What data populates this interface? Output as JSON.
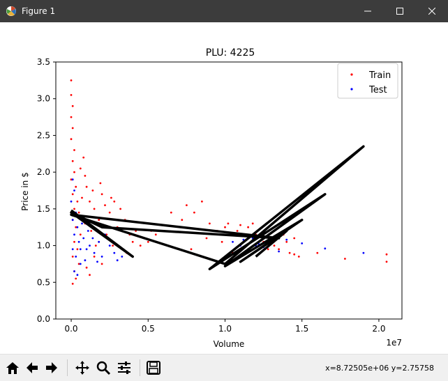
{
  "window": {
    "title": "Figure 1"
  },
  "status": {
    "coords": "x=8.72505e+06  y=2.75758"
  },
  "toolbar": {
    "buttons": [
      "home-icon",
      "back-arrow-icon",
      "forward-arrow-icon",
      "pan-icon",
      "zoom-icon",
      "subplots-icon",
      "save-icon"
    ]
  },
  "colors": {
    "train": "#ff0000",
    "test": "#0000ff",
    "fit": "#000000",
    "titlebar": "#3c3c3c"
  },
  "chart_data": {
    "type": "scatter",
    "title": "PLU: 4225",
    "xlabel": "Volume",
    "ylabel": "Price in $",
    "x_offset_label": "1e7",
    "xlim": [
      -0.1,
      2.15
    ],
    "ylim": [
      0.0,
      3.5
    ],
    "x_ticks": [
      0.0,
      0.5,
      1.0,
      1.5,
      2.0
    ],
    "x_tick_labels": [
      "0.0",
      "0.5",
      "1.0",
      "1.5",
      "2.0"
    ],
    "y_ticks": [
      0.0,
      0.5,
      1.0,
      1.5,
      2.0,
      2.5,
      3.0,
      3.5
    ],
    "y_tick_labels": [
      "0.0",
      "0.5",
      "1.0",
      "1.5",
      "2.0",
      "2.5",
      "3.0",
      "3.5"
    ],
    "legend": {
      "placement": "top-right",
      "entries": [
        "Train",
        "Test"
      ]
    },
    "series": [
      {
        "name": "Train",
        "color": "#ff0000",
        "points": [
          [
            0.0,
            3.25
          ],
          [
            0.0,
            3.05
          ],
          [
            0.01,
            2.9
          ],
          [
            0.0,
            2.75
          ],
          [
            0.01,
            2.6
          ],
          [
            0.0,
            2.45
          ],
          [
            0.02,
            2.3
          ],
          [
            0.01,
            2.15
          ],
          [
            0.02,
            2.0
          ],
          [
            0.0,
            1.9
          ],
          [
            0.03,
            1.8
          ],
          [
            0.01,
            1.7
          ],
          [
            0.04,
            1.6
          ],
          [
            0.02,
            1.5
          ],
          [
            0.05,
            1.45
          ],
          [
            0.01,
            1.35
          ],
          [
            0.03,
            1.25
          ],
          [
            0.06,
            1.15
          ],
          [
            0.02,
            1.05
          ],
          [
            0.04,
            0.95
          ],
          [
            0.01,
            0.85
          ],
          [
            0.05,
            0.75
          ],
          [
            0.02,
            0.65
          ],
          [
            0.03,
            0.55
          ],
          [
            0.01,
            0.48
          ],
          [
            0.08,
            2.2
          ],
          [
            0.09,
            1.95
          ],
          [
            0.1,
            1.8
          ],
          [
            0.12,
            1.6
          ],
          [
            0.15,
            1.5
          ],
          [
            0.13,
            1.2
          ],
          [
            0.18,
            1.35
          ],
          [
            0.2,
            1.7
          ],
          [
            0.22,
            1.55
          ],
          [
            0.25,
            1.45
          ],
          [
            0.28,
            1.6
          ],
          [
            0.3,
            1.25
          ],
          [
            0.32,
            1.5
          ],
          [
            0.35,
            1.35
          ],
          [
            0.38,
            1.15
          ],
          [
            0.4,
            1.05
          ],
          [
            0.42,
            1.2
          ],
          [
            0.45,
            1.0
          ],
          [
            0.18,
            1.05
          ],
          [
            0.23,
            1.15
          ],
          [
            0.27,
            1.0
          ],
          [
            0.33,
            0.95
          ],
          [
            0.36,
            0.9
          ],
          [
            0.15,
            0.85
          ],
          [
            0.2,
            0.75
          ],
          [
            0.1,
            0.7
          ],
          [
            0.12,
            0.6
          ],
          [
            0.14,
            1.75
          ],
          [
            0.19,
            1.85
          ],
          [
            0.26,
            1.65
          ],
          [
            0.07,
            1.65
          ],
          [
            0.06,
            2.05
          ],
          [
            0.09,
            1.3
          ],
          [
            0.16,
            1.0
          ],
          [
            0.52,
            1.2
          ],
          [
            0.55,
            1.15
          ],
          [
            0.5,
            1.05
          ],
          [
            0.75,
            1.55
          ],
          [
            0.72,
            1.35
          ],
          [
            0.8,
            1.45
          ],
          [
            0.85,
            1.6
          ],
          [
            0.9,
            1.3
          ],
          [
            0.65,
            1.45
          ],
          [
            0.78,
            0.95
          ],
          [
            0.88,
            1.1
          ],
          [
            0.95,
            1.2
          ],
          [
            1.0,
            1.25
          ],
          [
            1.02,
            1.3
          ],
          [
            1.05,
            1.15
          ],
          [
            1.08,
            1.2
          ],
          [
            1.1,
            1.28
          ],
          [
            1.12,
            1.05
          ],
          [
            1.15,
            1.25
          ],
          [
            1.18,
            1.3
          ],
          [
            1.2,
            1.15
          ],
          [
            1.22,
            1.0
          ],
          [
            1.25,
            1.05
          ],
          [
            1.28,
            0.95
          ],
          [
            1.3,
            1.1
          ],
          [
            1.32,
            1.0
          ],
          [
            1.35,
            0.95
          ],
          [
            1.38,
            1.15
          ],
          [
            1.4,
            1.05
          ],
          [
            1.42,
            0.9
          ],
          [
            1.45,
            1.1
          ],
          [
            1.48,
            0.85
          ],
          [
            1.6,
            0.9
          ],
          [
            1.78,
            0.82
          ],
          [
            2.05,
            0.88
          ],
          [
            2.05,
            0.78
          ],
          [
            1.1,
            0.95
          ],
          [
            0.98,
            1.05
          ],
          [
            1.05,
            0.9
          ],
          [
            1.45,
            0.88
          ]
        ]
      },
      {
        "name": "Test",
        "color": "#0000ff",
        "points": [
          [
            0.01,
            1.9
          ],
          [
            0.02,
            1.75
          ],
          [
            0.0,
            1.6
          ],
          [
            0.03,
            1.45
          ],
          [
            0.01,
            1.35
          ],
          [
            0.04,
            1.25
          ],
          [
            0.02,
            1.15
          ],
          [
            0.05,
            1.05
          ],
          [
            0.01,
            0.95
          ],
          [
            0.03,
            0.85
          ],
          [
            0.06,
            0.75
          ],
          [
            0.02,
            0.65
          ],
          [
            0.04,
            0.6
          ],
          [
            0.07,
            1.3
          ],
          [
            0.08,
            1.1
          ],
          [
            0.1,
            0.95
          ],
          [
            0.12,
            1.0
          ],
          [
            0.15,
            0.9
          ],
          [
            0.18,
            1.05
          ],
          [
            0.2,
            0.85
          ],
          [
            0.22,
            1.15
          ],
          [
            0.25,
            1.0
          ],
          [
            0.28,
            0.9
          ],
          [
            0.3,
            0.8
          ],
          [
            0.33,
            0.85
          ],
          [
            0.09,
            0.8
          ],
          [
            0.11,
            1.2
          ],
          [
            0.14,
            1.1
          ],
          [
            0.17,
            0.78
          ],
          [
            0.06,
            0.95
          ],
          [
            1.05,
            1.05
          ],
          [
            1.1,
            1.0
          ],
          [
            1.15,
            0.95
          ],
          [
            1.18,
            1.1
          ],
          [
            1.2,
            1.0
          ],
          [
            1.25,
            0.98
          ],
          [
            1.3,
            1.05
          ],
          [
            1.35,
            0.92
          ],
          [
            1.4,
            1.08
          ],
          [
            1.5,
            1.03
          ],
          [
            1.65,
            0.96
          ],
          [
            1.9,
            0.9
          ],
          [
            1.08,
            0.98
          ],
          [
            1.22,
            1.02
          ],
          [
            1.12,
            1.08
          ]
        ]
      }
    ],
    "fit_line": [
      [
        0.0,
        1.48
      ],
      [
        0.4,
        0.85
      ],
      [
        0.0,
        1.45
      ],
      [
        0.2,
        1.25
      ],
      [
        1.35,
        1.1
      ],
      [
        0.0,
        1.42
      ],
      [
        1.0,
        0.75
      ],
      [
        1.9,
        2.35
      ],
      [
        0.9,
        0.68
      ],
      [
        1.65,
        1.7
      ],
      [
        1.0,
        0.72
      ],
      [
        1.5,
        1.35
      ],
      [
        1.1,
        0.78
      ],
      [
        1.4,
        1.2
      ],
      [
        1.2,
        0.85
      ]
    ]
  }
}
